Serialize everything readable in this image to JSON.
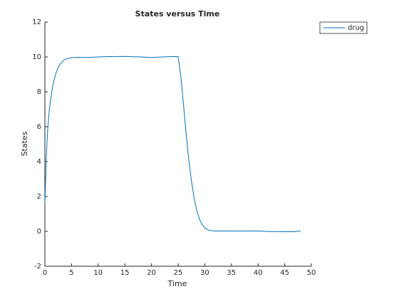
{
  "chart_data": {
    "type": "line",
    "title": "States versus Time",
    "xlabel": "Time",
    "ylabel": "States",
    "x": [
      0,
      0.25,
      0.5,
      0.75,
      1,
      1.5,
      2,
      2.5,
      3,
      3.5,
      4,
      5,
      6,
      8,
      10,
      12,
      15,
      18,
      20,
      22,
      24,
      25,
      25.5,
      26,
      26.5,
      27,
      27.5,
      28,
      28.5,
      29,
      29.5,
      30,
      30.5,
      31,
      32,
      35,
      40,
      42,
      45,
      47,
      48
    ],
    "series": [
      {
        "name": "drug",
        "color": "#0072bd",
        "values": [
          1.6,
          4.2,
          5.7,
          6.7,
          7.4,
          8.4,
          9.0,
          9.4,
          9.65,
          9.8,
          9.88,
          9.96,
          9.98,
          9.97,
          10.0,
          10.02,
          10.03,
          10.0,
          9.97,
          10.0,
          10.02,
          10.02,
          8.9,
          7.3,
          5.6,
          4.1,
          2.9,
          1.9,
          1.2,
          0.7,
          0.4,
          0.2,
          0.1,
          0.05,
          0.02,
          0.02,
          0.02,
          -0.01,
          -0.02,
          -0.02,
          0.03
        ]
      }
    ],
    "xlim": [
      0,
      50
    ],
    "xticks": [
      0,
      5,
      10,
      15,
      20,
      25,
      30,
      35,
      40,
      45,
      50
    ],
    "ylim": [
      -2,
      12
    ],
    "yticks": [
      -2,
      0,
      2,
      4,
      6,
      8,
      10,
      12
    ],
    "grid": false,
    "legend": "northeastoutside"
  }
}
